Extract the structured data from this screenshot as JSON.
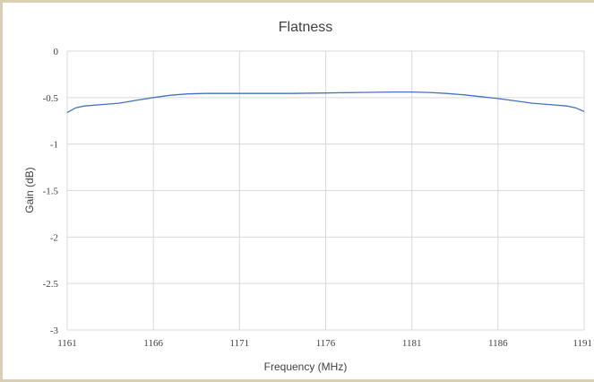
{
  "chart_data": {
    "type": "line",
    "title": "Flatness",
    "xlabel": "Frequency (MHz)",
    "ylabel": "Gain (dB)",
    "xlim": [
      1161,
      1191
    ],
    "ylim": [
      -3,
      0
    ],
    "x_ticks": [
      "1161",
      "1166",
      "1171",
      "1176",
      "1181",
      "1186",
      "1191"
    ],
    "y_ticks": [
      "0",
      "-0.5",
      "-1",
      "-1.5",
      "-2",
      "-2.5",
      "-3"
    ],
    "grid": true,
    "legend": "none",
    "series": [
      {
        "color": "#4472c4",
        "x": [
          1161,
          1161.5,
          1162,
          1163,
          1164,
          1165,
          1166,
          1167,
          1168,
          1169,
          1170,
          1172,
          1174,
          1176,
          1178,
          1180,
          1181,
          1182,
          1183,
          1184,
          1185,
          1186,
          1187,
          1188,
          1189,
          1190,
          1190.5,
          1191
        ],
        "y": [
          -0.66,
          -0.61,
          -0.59,
          -0.575,
          -0.56,
          -0.53,
          -0.5,
          -0.475,
          -0.46,
          -0.455,
          -0.455,
          -0.455,
          -0.455,
          -0.45,
          -0.445,
          -0.44,
          -0.44,
          -0.445,
          -0.455,
          -0.47,
          -0.49,
          -0.51,
          -0.535,
          -0.56,
          -0.575,
          -0.59,
          -0.61,
          -0.65
        ]
      }
    ]
  }
}
